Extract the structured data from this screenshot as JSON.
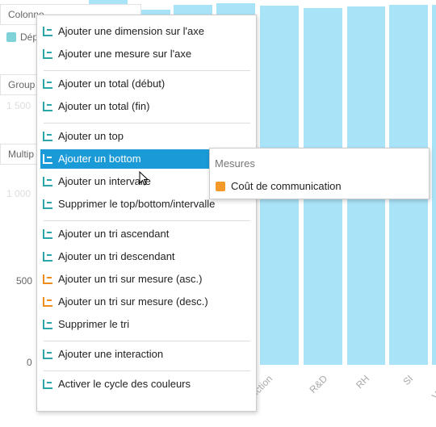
{
  "background": {
    "panels": [
      "Colonne",
      "Group",
      "Multip"
    ],
    "dimension": "Dép",
    "faded_ticks": [
      "1 500",
      "1 000"
    ],
    "ticks": [
      "500",
      "0"
    ],
    "categories": [
      "Production",
      "R&D",
      "RH",
      "SI",
      "Ve"
    ]
  },
  "menu": {
    "groups": [
      [
        {
          "label": "Ajouter une dimension sur l'axe"
        },
        {
          "label": "Ajouter une mesure sur l'axe"
        }
      ],
      [
        {
          "label": "Ajouter un total (début)"
        },
        {
          "label": "Ajouter un total (fin)"
        }
      ],
      [
        {
          "label": "Ajouter un top"
        },
        {
          "label": "Ajouter un bottom",
          "active": true
        },
        {
          "label": "Ajouter un intervalle"
        },
        {
          "label": "Supprimer le top/bottom/intervalle"
        }
      ],
      [
        {
          "label": "Ajouter un tri ascendant"
        },
        {
          "label": "Ajouter un tri descendant"
        },
        {
          "label": "Ajouter un tri sur mesure (asc.)"
        },
        {
          "label": "Ajouter un tri sur mesure (desc.)"
        },
        {
          "label": "Supprimer le tri"
        }
      ],
      [
        {
          "label": "Ajouter une interaction"
        }
      ],
      [
        {
          "label": "Activer le cycle des couleurs"
        }
      ]
    ]
  },
  "submenu": {
    "title": "Mesures",
    "items": [
      "Coût de communication"
    ]
  }
}
